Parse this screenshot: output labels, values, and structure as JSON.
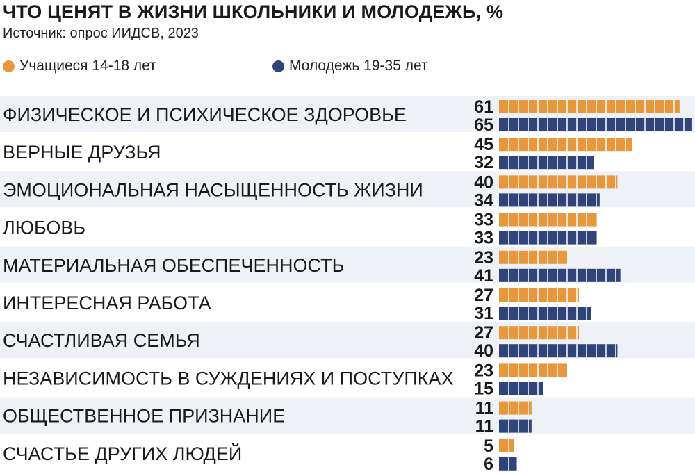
{
  "chart_data": {
    "type": "bar",
    "orientation": "horizontal",
    "title": "ЧТО ЦЕНЯТ В ЖИЗНИ ШКОЛЬНИКИ И МОЛОДЕЖЬ, %",
    "subtitle": "Источник: опрос ИИДСВ, 2023",
    "categories": [
      "ФИЗИЧЕСКОЕ И ПСИХИЧЕСКОЕ ЗДОРОВЬЕ",
      "ВЕРНЫЕ ДРУЗЬЯ",
      "ЭМОЦИОНАЛЬНАЯ НАСЫЩЕННОСТЬ ЖИЗНИ",
      "ЛЮБОВЬ",
      "МАТЕРИАЛЬНАЯ ОБЕСПЕЧЕННОСТЬ",
      "ИНТЕРЕСНАЯ РАБОТА",
      "СЧАСТЛИВАЯ СЕМЬЯ",
      "НЕЗАВИСИМОСТЬ В СУЖДЕНИЯХ И ПОСТУПКАХ",
      "ОБЩЕСТВЕННОЕ ПРИЗНАНИЕ",
      "СЧАСТЬЕ ДРУГИХ ЛЮДЕЙ"
    ],
    "series": [
      {
        "name": "Учащиеся 14-18 лет",
        "color": "#E9973D",
        "values": [
          61,
          45,
          40,
          33,
          23,
          27,
          27,
          23,
          11,
          5
        ]
      },
      {
        "name": "Молодежь 19-35 лет",
        "color": "#2F4478",
        "values": [
          65,
          32,
          34,
          33,
          41,
          31,
          40,
          15,
          11,
          6
        ]
      }
    ],
    "xlim": [
      0,
      65
    ],
    "legend": "top-left",
    "row_band_color": "#EEF1F5",
    "grid": false
  }
}
